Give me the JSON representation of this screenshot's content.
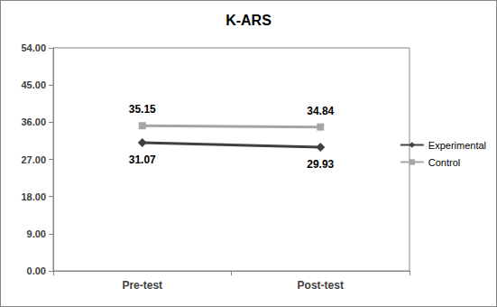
{
  "chart_data": {
    "type": "line",
    "title": "K-ARS",
    "categories": [
      "Pre-test",
      "Post-test"
    ],
    "series": [
      {
        "name": "Experimental",
        "color": "#404040",
        "marker": "diamond",
        "line_style": "solid",
        "values": [
          31.07,
          29.93
        ]
      },
      {
        "name": "Control",
        "color": "#a6a6a6",
        "marker": "square",
        "line_style": "solid",
        "values": [
          35.15,
          34.84
        ]
      }
    ],
    "ylim": [
      0,
      54
    ],
    "yticks": [
      {
        "value": 0,
        "label": "0.00"
      },
      {
        "value": 9,
        "label": "9.00"
      },
      {
        "value": 18,
        "label": "18.00"
      },
      {
        "value": 27,
        "label": "27.00"
      },
      {
        "value": 36,
        "label": "36.00"
      },
      {
        "value": 45,
        "label": "45.00"
      },
      {
        "value": 54,
        "label": "54.00"
      }
    ],
    "grid": false,
    "legend": "right",
    "data_labels": true
  }
}
